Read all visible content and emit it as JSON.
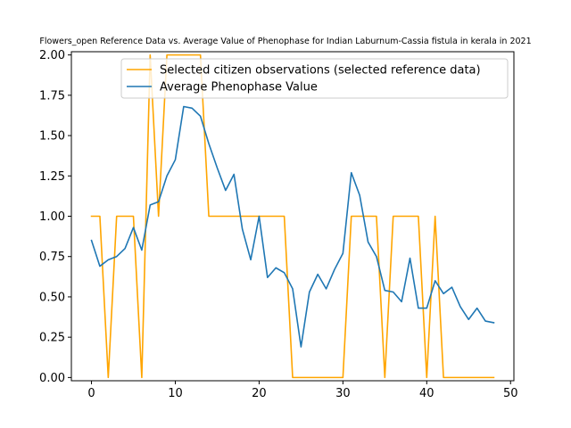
{
  "chart_data": {
    "type": "line",
    "title": "Flowers_open Reference Data vs. Average Value of Phenophase for Indian Laburnum-Cassia fistula in kerala in 2021",
    "xlabel": "",
    "ylabel": "",
    "xlim": [
      -2.4,
      50.4
    ],
    "ylim": [
      -0.02,
      2.02
    ],
    "xticks": [
      0,
      10,
      20,
      30,
      40,
      50
    ],
    "yticks": [
      0.0,
      0.25,
      0.5,
      0.75,
      1.0,
      1.25,
      1.5,
      1.75,
      2.0
    ],
    "xtick_labels": [
      "0",
      "10",
      "20",
      "30",
      "40",
      "50"
    ],
    "ytick_labels": [
      "0.00",
      "0.25",
      "0.50",
      "0.75",
      "1.00",
      "1.25",
      "1.50",
      "1.75",
      "2.00"
    ],
    "grid": false,
    "legend_position": "upper-right",
    "series": [
      {
        "name": "Selected citizen observations (selected reference data)",
        "color": "#ffa500",
        "x": [
          0,
          1,
          2,
          3,
          4,
          5,
          6,
          7,
          8,
          9,
          10,
          11,
          12,
          13,
          14,
          15,
          16,
          17,
          18,
          19,
          20,
          21,
          22,
          23,
          24,
          25,
          26,
          27,
          28,
          29,
          30,
          31,
          32,
          33,
          34,
          35,
          36,
          37,
          38,
          39,
          40,
          41,
          42,
          43,
          44,
          45,
          46,
          47,
          48
        ],
        "values": [
          1,
          1,
          0,
          1,
          1,
          1,
          0,
          2,
          1,
          2,
          2,
          2,
          2,
          2,
          1,
          1,
          1,
          1,
          1,
          1,
          1,
          1,
          1,
          1,
          0,
          0,
          0,
          0,
          0,
          0,
          0,
          1,
          1,
          1,
          1,
          0,
          1,
          1,
          1,
          1,
          0,
          1,
          0,
          0,
          0,
          0,
          0,
          0,
          0
        ]
      },
      {
        "name": "Average Phenophase Value",
        "color": "#1f77b4",
        "x": [
          0,
          1,
          2,
          3,
          4,
          5,
          6,
          7,
          8,
          9,
          10,
          11,
          12,
          13,
          14,
          15,
          16,
          17,
          18,
          19,
          20,
          21,
          22,
          23,
          24,
          25,
          26,
          27,
          28,
          29,
          30,
          31,
          32,
          33,
          34,
          35,
          36,
          37,
          38,
          39,
          40,
          41,
          42,
          43,
          44,
          45,
          46,
          47,
          48
        ],
        "values": [
          0.85,
          0.69,
          0.73,
          0.75,
          0.8,
          0.93,
          0.79,
          1.07,
          1.09,
          1.25,
          1.35,
          1.68,
          1.67,
          1.62,
          1.45,
          1.3,
          1.16,
          1.26,
          0.92,
          0.73,
          1.0,
          0.62,
          0.68,
          0.65,
          0.55,
          0.19,
          0.53,
          0.64,
          0.55,
          0.67,
          0.77,
          1.27,
          1.13,
          0.84,
          0.75,
          0.54,
          0.53,
          0.47,
          0.74,
          0.43,
          0.43,
          0.6,
          0.52,
          0.56,
          0.44,
          0.36,
          0.43,
          0.35,
          0.34
        ]
      }
    ]
  }
}
